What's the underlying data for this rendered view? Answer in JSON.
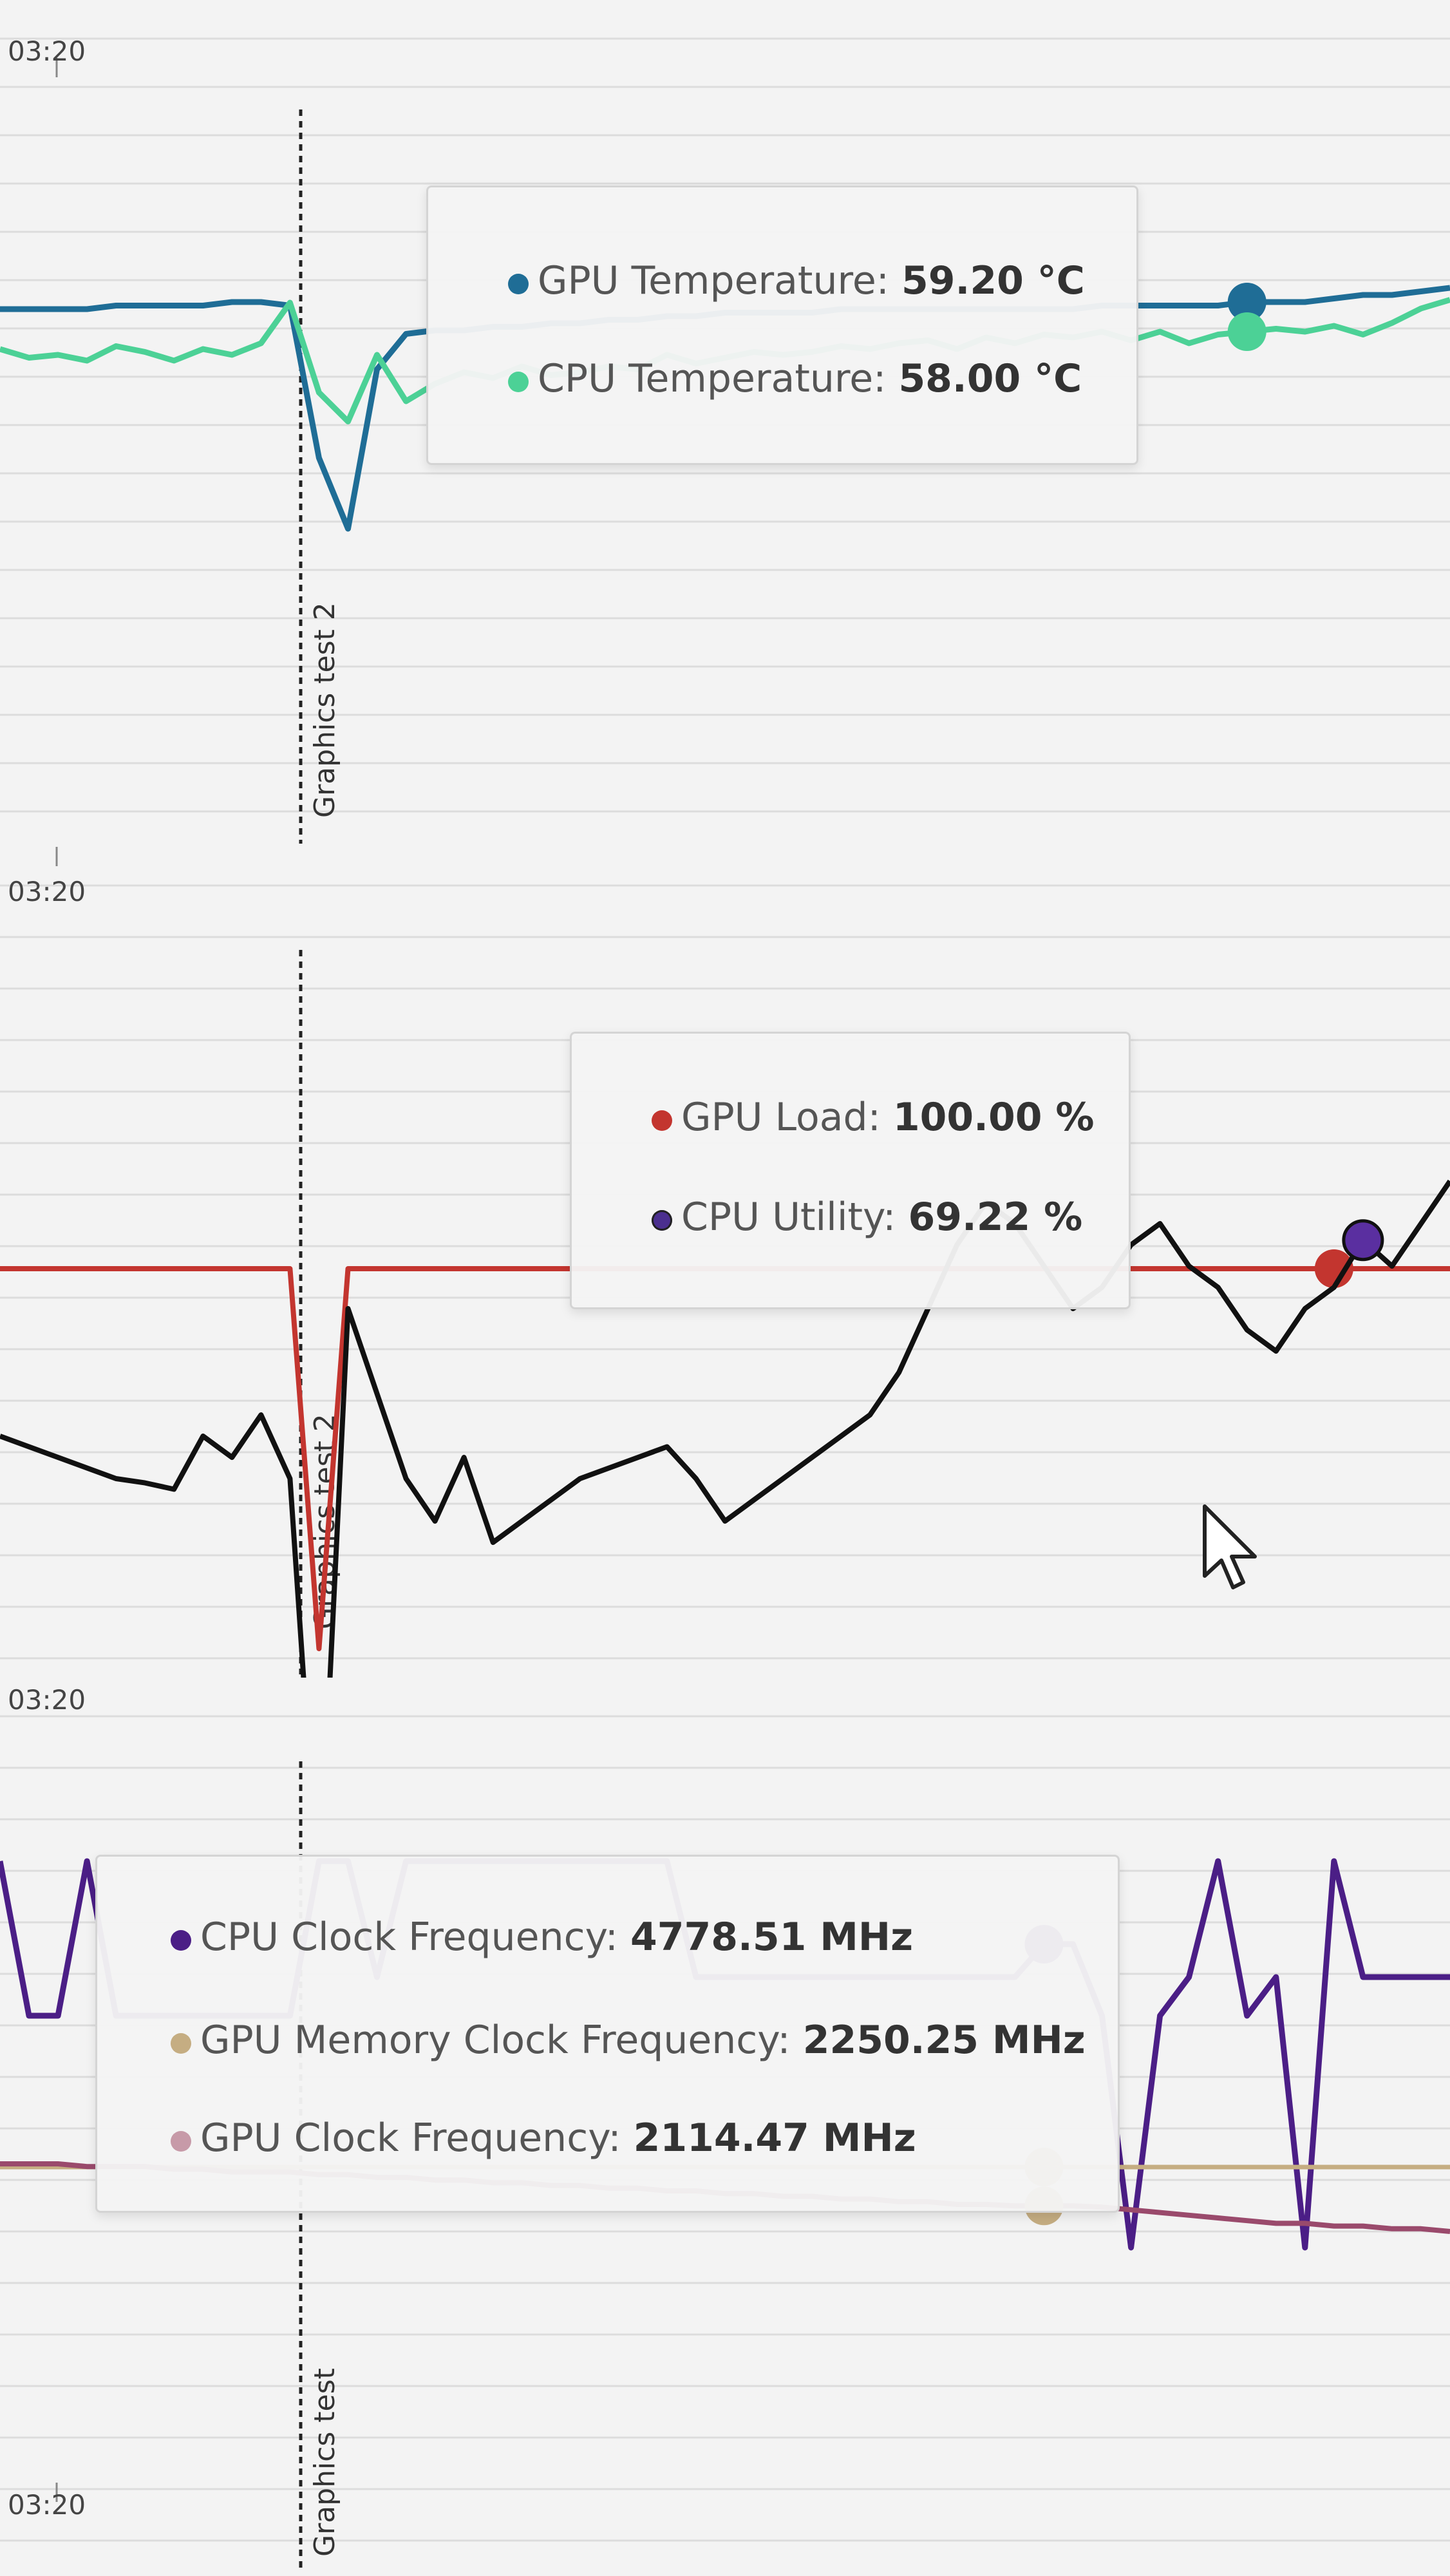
{
  "colors": {
    "gpu_temp": "#1f6d96",
    "cpu_temp": "#4cd196",
    "gpu_load": "#c3352f",
    "cpu_util": "#111111",
    "cpu_util_marker": "#5a2fa0",
    "cpu_clock": "#4b1e86",
    "gpu_mem_clock": "#c5ad82",
    "gpu_clock": "#9a4a6c"
  },
  "time_labels": [
    "03:20",
    "03:20",
    "03:20",
    "03:20"
  ],
  "cursor_icon": "mouse-pointer-icon",
  "chart_data": [
    {
      "type": "line",
      "event_marker": "Graphics test 2",
      "grid": true,
      "tooltip": [
        {
          "label": "GPU Temperature:",
          "value": "59.20 °C"
        },
        {
          "label": "CPU Temperature:",
          "value": "58.00 °C"
        }
      ],
      "series": [
        {
          "name": "GPU Temperature",
          "values": [
            59.2,
            59.2,
            59.2,
            59.2,
            59.3,
            59.3,
            59.3,
            59.3,
            59.4,
            59.4,
            59.3,
            55.0,
            53.0,
            57.5,
            58.5,
            58.6,
            58.6,
            58.7,
            58.7,
            58.8,
            58.8,
            58.9,
            58.9,
            59.0,
            59.0,
            59.1,
            59.1,
            59.1,
            59.1,
            59.2,
            59.2,
            59.2,
            59.2,
            59.2,
            59.2,
            59.2,
            59.2,
            59.2,
            59.3,
            59.3,
            59.3,
            59.3,
            59.3,
            59.4,
            59.4,
            59.4,
            59.5,
            59.6,
            59.6,
            59.7,
            59.8
          ]
        },
        {
          "name": "CPU Temperature",
          "values": [
            58.0,
            57.7,
            57.8,
            57.6,
            58.1,
            57.9,
            57.6,
            58.0,
            57.8,
            58.2,
            59.6,
            56.5,
            55.5,
            57.8,
            56.2,
            56.8,
            57.2,
            57.0,
            57.4,
            57.1,
            57.2,
            57.4,
            57.3,
            57.8,
            57.5,
            57.7,
            57.9,
            57.8,
            57.9,
            58.1,
            58.0,
            58.2,
            58.3,
            58.0,
            58.4,
            58.2,
            58.5,
            58.4,
            58.6,
            58.3,
            58.6,
            58.2,
            58.5,
            58.6,
            58.7,
            58.6,
            58.8,
            58.5,
            58.9,
            59.4,
            59.7
          ]
        }
      ]
    },
    {
      "type": "line",
      "event_marker": "Graphics test 2",
      "grid": true,
      "tooltip": [
        {
          "label": "GPU Load:",
          "value": "100.00 %"
        },
        {
          "label": "CPU Utility:",
          "value": "69.22 %"
        }
      ],
      "series": [
        {
          "name": "GPU Load",
          "values": [
            100,
            100,
            100,
            100,
            100,
            100,
            100,
            100,
            100,
            100,
            100,
            0,
            100,
            100,
            100,
            100,
            100,
            100,
            100,
            100,
            100,
            100,
            100,
            100,
            100,
            100,
            100,
            100,
            100,
            100,
            100,
            100,
            100,
            100,
            100,
            100,
            100,
            100,
            100,
            100,
            100,
            100,
            100,
            100,
            100,
            100,
            100,
            100,
            100,
            100,
            100
          ]
        },
        {
          "name": "CPU Utility",
          "values": [
            60,
            59.5,
            59,
            58.5,
            58,
            57.8,
            57.5,
            60,
            59,
            61,
            58,
            38,
            66,
            62,
            58,
            56,
            59,
            55,
            56,
            57,
            58,
            58.5,
            59,
            59.5,
            58,
            56,
            57,
            58,
            59,
            60,
            61,
            63,
            66,
            69,
            71,
            70,
            68,
            66,
            67,
            69,
            70,
            68,
            67,
            65,
            64,
            66,
            67,
            69.22,
            68,
            70,
            72
          ]
        }
      ]
    },
    {
      "type": "line",
      "event_marker": "Graphics test",
      "grid": true,
      "tooltip": [
        {
          "label": "CPU Clock Frequency:",
          "value": "4778.51 MHz"
        },
        {
          "label": "GPU Memory Clock Frequency:",
          "value": "2250.25 MHz"
        },
        {
          "label": "GPU Clock Frequency:",
          "value": "2114.47 MHz"
        }
      ],
      "series": [
        {
          "name": "CPU Clock Frequency",
          "values": [
            4800,
            4760,
            4760,
            4800,
            4760,
            4760,
            4760,
            4760,
            4760,
            4760,
            4760,
            4800,
            4800,
            4770,
            4800,
            4800,
            4800,
            4800,
            4800,
            4800,
            4800,
            4800,
            4800,
            4800,
            4770,
            4770,
            4770,
            4770,
            4770,
            4770,
            4770,
            4770,
            4770,
            4770,
            4770,
            4770,
            4778.51,
            4778.51,
            4760,
            4700,
            4760,
            4770,
            4800,
            4760,
            4770,
            4700,
            4800,
            4770,
            4770,
            4770,
            4770
          ]
        },
        {
          "name": "GPU Memory Clock Frequency",
          "values": [
            2250.25,
            2250.25,
            2250.25,
            2250.25,
            2250.25,
            2250.25,
            2250.25,
            2250.25,
            2250.25,
            2250.25,
            2250.25,
            2250.25,
            2250.25,
            2250.25,
            2250.25,
            2250.25,
            2250.25,
            2250.25,
            2250.25,
            2250.25,
            2250.25,
            2250.25,
            2250.25,
            2250.25,
            2250.25,
            2250.25,
            2250.25,
            2250.25,
            2250.25,
            2250.25,
            2250.25,
            2250.25,
            2250.25,
            2250.25,
            2250.25,
            2250.25,
            2250.25,
            2250.25,
            2250.25,
            2250.25,
            2250.25,
            2250.25,
            2250.25,
            2250.25,
            2250.25,
            2250.25,
            2250.25,
            2250.25,
            2250.25,
            2250.25,
            2250.25
          ]
        },
        {
          "name": "GPU Clock Frequency",
          "values": [
            2130,
            2130,
            2130,
            2129,
            2129,
            2129,
            2128,
            2128,
            2127,
            2127,
            2127,
            2126,
            2126,
            2125,
            2125,
            2124,
            2124,
            2123,
            2123,
            2122,
            2122,
            2121,
            2121,
            2120,
            2120,
            2119,
            2119,
            2118,
            2118,
            2117,
            2117,
            2116,
            2116,
            2115,
            2115,
            2114.47,
            2114.47,
            2114.47,
            2114,
            2113,
            2112,
            2111,
            2110,
            2109,
            2108,
            2108,
            2107,
            2107,
            2106,
            2106,
            2105
          ]
        }
      ]
    }
  ]
}
